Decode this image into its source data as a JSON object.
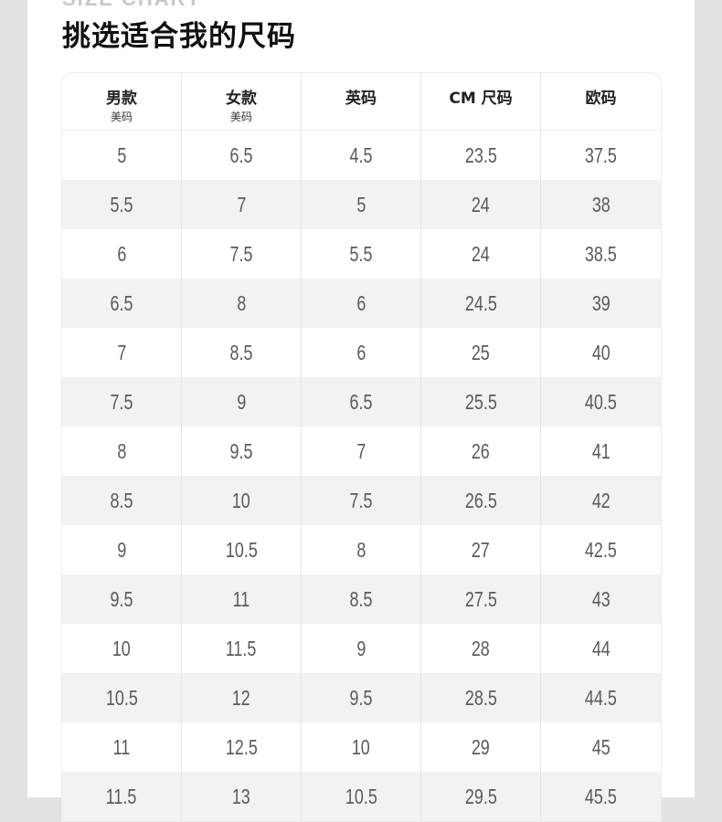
{
  "header": {
    "eyebrow": "SIZE CHART",
    "title": "挑选适合我的尺码"
  },
  "columns": [
    {
      "label": "男款",
      "sub": "美码"
    },
    {
      "label": "女款",
      "sub": "美码"
    },
    {
      "label": "英码",
      "sub": ""
    },
    {
      "label": "CM 尺码",
      "sub": ""
    },
    {
      "label": "欧码",
      "sub": ""
    }
  ],
  "rows": [
    [
      "5",
      "6.5",
      "4.5",
      "23.5",
      "37.5"
    ],
    [
      "5.5",
      "7",
      "5",
      "24",
      "38"
    ],
    [
      "6",
      "7.5",
      "5.5",
      "24",
      "38.5"
    ],
    [
      "6.5",
      "8",
      "6",
      "24.5",
      "39"
    ],
    [
      "7",
      "8.5",
      "6",
      "25",
      "40"
    ],
    [
      "7.5",
      "9",
      "6.5",
      "25.5",
      "40.5"
    ],
    [
      "8",
      "9.5",
      "7",
      "26",
      "41"
    ],
    [
      "8.5",
      "10",
      "7.5",
      "26.5",
      "42"
    ],
    [
      "9",
      "10.5",
      "8",
      "27",
      "42.5"
    ],
    [
      "9.5",
      "11",
      "8.5",
      "27.5",
      "43"
    ],
    [
      "10",
      "11.5",
      "9",
      "28",
      "44"
    ],
    [
      "10.5",
      "12",
      "9.5",
      "28.5",
      "44.5"
    ],
    [
      "11",
      "12.5",
      "10",
      "29",
      "45"
    ],
    [
      "11.5",
      "13",
      "10.5",
      "29.5",
      "45.5"
    ]
  ]
}
